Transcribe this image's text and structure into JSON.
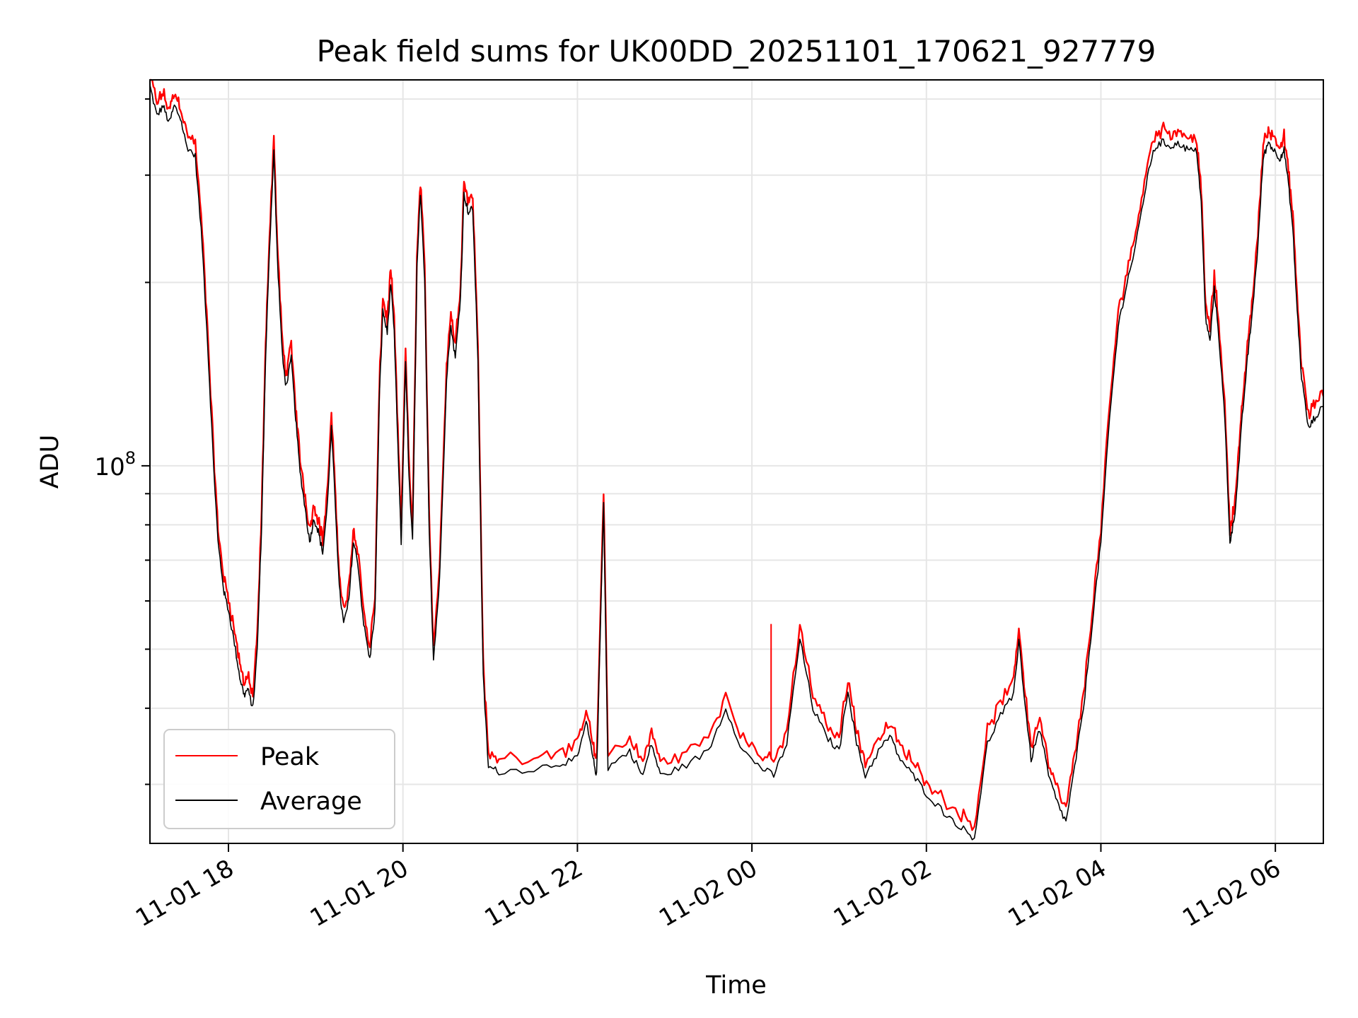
{
  "chart_data": {
    "type": "line",
    "title": "Peak field sums for UK00DD_20251101_170621_927779",
    "xlabel": "Time",
    "ylabel": "ADU",
    "yscale": "log",
    "ylim": [
      24000000,
      430000000
    ],
    "xlim_hours": [
      17.1,
      30.55
    ],
    "x_ticks": [
      {
        "hour": 18,
        "label": "11-01 18"
      },
      {
        "hour": 20,
        "label": "11-01 20"
      },
      {
        "hour": 22,
        "label": "11-01 22"
      },
      {
        "hour": 24,
        "label": "11-02 00"
      },
      {
        "hour": 26,
        "label": "11-02 02"
      },
      {
        "hour": 28,
        "label": "11-02 04"
      },
      {
        "hour": 30,
        "label": "11-02 06"
      }
    ],
    "y_major_ticks": [
      {
        "value": 100000000,
        "base": "10",
        "exp": "8"
      }
    ],
    "y_minor_ticks": [
      30000000,
      40000000,
      50000000,
      60000000,
      70000000,
      80000000,
      90000000,
      200000000,
      300000000,
      400000000
    ],
    "grid": true,
    "legend_position": "lower-left",
    "colors": {
      "peak": "#ff0000",
      "average": "#000000",
      "grid": "#e6e6e6"
    },
    "series": [
      {
        "name": "Peak",
        "color": "#ff0000"
      },
      {
        "name": "Average",
        "color": "#000000"
      }
    ],
    "average_points": [
      [
        17.1,
        420000000
      ],
      [
        17.18,
        375000000
      ],
      [
        17.25,
        390000000
      ],
      [
        17.32,
        365000000
      ],
      [
        17.38,
        390000000
      ],
      [
        17.45,
        372000000
      ],
      [
        17.52,
        335000000
      ],
      [
        17.62,
        322000000
      ],
      [
        17.7,
        230000000
      ],
      [
        17.76,
        160000000
      ],
      [
        17.83,
        100000000
      ],
      [
        17.88,
        75000000
      ],
      [
        17.95,
        62000000
      ],
      [
        18.0,
        58000000
      ],
      [
        18.07,
        51000000
      ],
      [
        18.13,
        45000000
      ],
      [
        18.18,
        42000000
      ],
      [
        18.22,
        43000000
      ],
      [
        18.28,
        40000000
      ],
      [
        18.33,
        50000000
      ],
      [
        18.38,
        80000000
      ],
      [
        18.42,
        140000000
      ],
      [
        18.46,
        210000000
      ],
      [
        18.52,
        330000000
      ],
      [
        18.56,
        220000000
      ],
      [
        18.62,
        150000000
      ],
      [
        18.66,
        135000000
      ],
      [
        18.72,
        150000000
      ],
      [
        18.77,
        120000000
      ],
      [
        18.82,
        98000000
      ],
      [
        18.88,
        85000000
      ],
      [
        18.93,
        75000000
      ],
      [
        18.98,
        82000000
      ],
      [
        19.03,
        78000000
      ],
      [
        19.08,
        72000000
      ],
      [
        19.13,
        85000000
      ],
      [
        19.18,
        115000000
      ],
      [
        19.22,
        90000000
      ],
      [
        19.27,
        63000000
      ],
      [
        19.32,
        55000000
      ],
      [
        19.38,
        60000000
      ],
      [
        19.43,
        75000000
      ],
      [
        19.48,
        70000000
      ],
      [
        19.55,
        55000000
      ],
      [
        19.62,
        48000000
      ],
      [
        19.68,
        58000000
      ],
      [
        19.73,
        130000000
      ],
      [
        19.77,
        180000000
      ],
      [
        19.82,
        165000000
      ],
      [
        19.86,
        200000000
      ],
      [
        19.9,
        165000000
      ],
      [
        19.95,
        100000000
      ],
      [
        19.98,
        75000000
      ],
      [
        20.03,
        150000000
      ],
      [
        20.07,
        95000000
      ],
      [
        20.11,
        75000000
      ],
      [
        20.16,
        210000000
      ],
      [
        20.2,
        280000000
      ],
      [
        20.25,
        200000000
      ],
      [
        20.3,
        80000000
      ],
      [
        20.35,
        48000000
      ],
      [
        20.42,
        65000000
      ],
      [
        20.5,
        140000000
      ],
      [
        20.55,
        170000000
      ],
      [
        20.6,
        150000000
      ],
      [
        20.66,
        190000000
      ],
      [
        20.7,
        280000000
      ],
      [
        20.75,
        260000000
      ],
      [
        20.8,
        265000000
      ],
      [
        20.86,
        150000000
      ],
      [
        20.92,
        45000000
      ],
      [
        20.98,
        32000000
      ],
      [
        21.1,
        31500000
      ],
      [
        21.5,
        31800000
      ],
      [
        21.8,
        32500000
      ],
      [
        22.0,
        33000000
      ],
      [
        22.1,
        38000000
      ],
      [
        22.18,
        33000000
      ],
      [
        22.22,
        31000000
      ],
      [
        22.3,
        88000000
      ],
      [
        22.35,
        32000000
      ],
      [
        22.6,
        34000000
      ],
      [
        22.75,
        31000000
      ],
      [
        22.85,
        35000000
      ],
      [
        22.95,
        31000000
      ],
      [
        23.2,
        32000000
      ],
      [
        23.5,
        34000000
      ],
      [
        23.7,
        40000000
      ],
      [
        23.9,
        34000000
      ],
      [
        24.1,
        32000000
      ],
      [
        24.25,
        31000000
      ],
      [
        24.4,
        35000000
      ],
      [
        24.55,
        52000000
      ],
      [
        24.7,
        40000000
      ],
      [
        24.85,
        36000000
      ],
      [
        25.0,
        34000000
      ],
      [
        25.1,
        43000000
      ],
      [
        25.2,
        35000000
      ],
      [
        25.3,
        31000000
      ],
      [
        25.45,
        34000000
      ],
      [
        25.58,
        36000000
      ],
      [
        25.7,
        33000000
      ],
      [
        25.85,
        31000000
      ],
      [
        26.0,
        29000000
      ],
      [
        26.2,
        27000000
      ],
      [
        26.4,
        25500000
      ],
      [
        26.55,
        24500000
      ],
      [
        26.7,
        35000000
      ],
      [
        26.85,
        39000000
      ],
      [
        27.0,
        42000000
      ],
      [
        27.06,
        52000000
      ],
      [
        27.12,
        42000000
      ],
      [
        27.2,
        33000000
      ],
      [
        27.3,
        37000000
      ],
      [
        27.4,
        31000000
      ],
      [
        27.5,
        28000000
      ],
      [
        27.6,
        26000000
      ],
      [
        27.7,
        32000000
      ],
      [
        27.8,
        40000000
      ],
      [
        27.9,
        55000000
      ],
      [
        28.0,
        75000000
      ],
      [
        28.1,
        120000000
      ],
      [
        28.2,
        170000000
      ],
      [
        28.3,
        200000000
      ],
      [
        28.4,
        230000000
      ],
      [
        28.5,
        280000000
      ],
      [
        28.6,
        330000000
      ],
      [
        28.7,
        340000000
      ],
      [
        28.8,
        335000000
      ],
      [
        28.9,
        338000000
      ],
      [
        29.0,
        330000000
      ],
      [
        29.1,
        328000000
      ],
      [
        29.15,
        270000000
      ],
      [
        29.2,
        175000000
      ],
      [
        29.25,
        160000000
      ],
      [
        29.3,
        195000000
      ],
      [
        29.35,
        165000000
      ],
      [
        29.42,
        120000000
      ],
      [
        29.48,
        75000000
      ],
      [
        29.53,
        82000000
      ],
      [
        29.58,
        100000000
      ],
      [
        29.62,
        120000000
      ],
      [
        29.68,
        150000000
      ],
      [
        29.73,
        175000000
      ],
      [
        29.8,
        230000000
      ],
      [
        29.86,
        320000000
      ],
      [
        29.92,
        340000000
      ],
      [
        29.98,
        330000000
      ],
      [
        30.05,
        320000000
      ],
      [
        30.1,
        330000000
      ],
      [
        30.15,
        290000000
      ],
      [
        30.2,
        245000000
      ],
      [
        30.25,
        180000000
      ],
      [
        30.3,
        140000000
      ],
      [
        30.38,
        115000000
      ],
      [
        30.45,
        120000000
      ],
      [
        30.55,
        125000000
      ]
    ]
  }
}
